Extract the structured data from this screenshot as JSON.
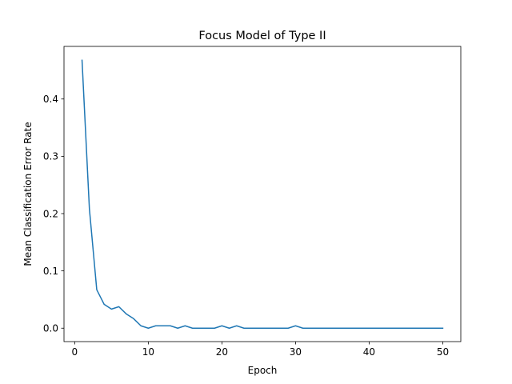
{
  "chart_data": {
    "type": "line",
    "title": "Focus Model of Type II",
    "xlabel": "Epoch",
    "ylabel": "Mean Classification Error Rate",
    "xlim": [
      -1.45,
      52.45
    ],
    "ylim": [
      -0.0234,
      0.4918
    ],
    "xticks": [
      0,
      10,
      20,
      30,
      40,
      50
    ],
    "yticks": [
      0.0,
      0.1,
      0.2,
      0.3,
      0.4
    ],
    "ytick_labels": [
      "0.0",
      "0.1",
      "0.2",
      "0.3",
      "0.4"
    ],
    "grid": false,
    "legend": "none",
    "series": [
      {
        "color": "#1f77b4",
        "x": [
          1,
          2,
          3,
          4,
          5,
          6,
          7,
          8,
          9,
          10,
          11,
          12,
          13,
          14,
          15,
          16,
          17,
          18,
          19,
          20,
          21,
          22,
          23,
          24,
          25,
          26,
          27,
          28,
          29,
          30,
          31,
          32,
          33,
          34,
          35,
          36,
          37,
          38,
          39,
          40,
          41,
          42,
          43,
          44,
          45,
          46,
          47,
          48,
          49,
          50
        ],
        "values": [
          0.4676,
          0.2083,
          0.0671,
          0.0417,
          0.0333,
          0.0375,
          0.025,
          0.0167,
          0.0042,
          0.0,
          0.0042,
          0.0042,
          0.0042,
          0.0,
          0.0042,
          0.0,
          0.0,
          0.0,
          0.0,
          0.0042,
          0.0,
          0.0042,
          0.0,
          0.0,
          0.0,
          0.0,
          0.0,
          0.0,
          0.0,
          0.0042,
          0.0,
          0.0,
          0.0,
          0.0,
          0.0,
          0.0,
          0.0,
          0.0,
          0.0,
          0.0,
          0.0,
          0.0,
          0.0,
          0.0,
          0.0,
          0.0,
          0.0,
          0.0,
          0.0,
          0.0
        ]
      }
    ]
  }
}
